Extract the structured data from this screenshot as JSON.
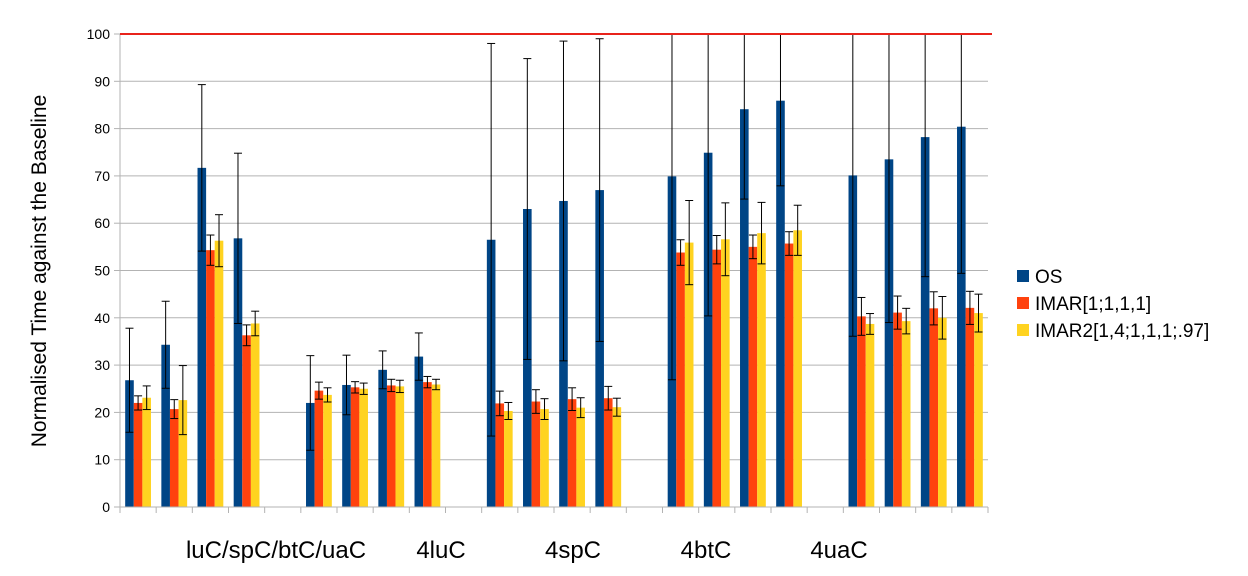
{
  "chart_data": {
    "type": "bar",
    "ylabel": "Normalised Time against the Baseline",
    "ylim": [
      0,
      100
    ],
    "yticks": [
      0,
      10,
      20,
      30,
      40,
      50,
      60,
      70,
      80,
      90,
      100
    ],
    "grid": true,
    "legend_position": "right",
    "reference_line": {
      "value": 100,
      "color": "#e8231b"
    },
    "group_labels": [
      "luC/spC/btC/uaC",
      "4luC",
      "4spC",
      "4btC",
      "4uaC"
    ],
    "series": [
      {
        "name": "OS",
        "color": "#004586",
        "values": [
          26.8,
          34.3,
          71.7,
          56.8,
          null,
          22,
          25.8,
          29,
          31.8,
          null,
          56.5,
          63,
          64.7,
          67,
          null,
          69.9,
          74.9,
          84.1,
          85.9,
          null,
          70.1,
          73.5,
          78.2,
          80.4
        ],
        "errors": [
          11,
          9.2,
          17.6,
          18,
          null,
          10,
          6.3,
          4,
          5,
          null,
          41.5,
          31.8,
          33.8,
          32,
          null,
          43,
          34.5,
          19,
          18,
          null,
          34,
          34.5,
          29.5,
          31
        ]
      },
      {
        "name": "IMAR[1;1,1,1]",
        "color": "#ff420e",
        "values": [
          22,
          20.7,
          54.3,
          36.3,
          null,
          24.6,
          25.3,
          25.7,
          26.4,
          null,
          21.9,
          22.3,
          22.8,
          23,
          null,
          53.8,
          54.4,
          55,
          55.7,
          null,
          40.3,
          41.1,
          42,
          42.1
        ],
        "errors": [
          1.5,
          2,
          3.2,
          2.2,
          null,
          1.8,
          1.2,
          1.3,
          1.2,
          null,
          2.6,
          2.5,
          2.4,
          2.5,
          null,
          2.7,
          3,
          2.5,
          2.5,
          null,
          4,
          3.5,
          3.5,
          3.5
        ]
      },
      {
        "name": "IMAR2[1,4;1,1,1;.97]",
        "color": "#ffd320",
        "values": [
          23.1,
          22.6,
          56.3,
          38.8,
          null,
          23.7,
          25,
          25.5,
          25.9,
          null,
          20.3,
          20.7,
          21,
          21.1,
          null,
          55.9,
          56.6,
          57.9,
          58.5,
          null,
          38.7,
          39.3,
          40,
          41
        ],
        "errors": [
          2.5,
          7.3,
          5.5,
          2.6,
          null,
          1.5,
          1.2,
          1.3,
          1.1,
          null,
          1.8,
          2.2,
          2.1,
          1.9,
          null,
          8.9,
          7.7,
          6.5,
          5.3,
          null,
          2.2,
          2.7,
          4.5,
          4
        ]
      }
    ]
  }
}
